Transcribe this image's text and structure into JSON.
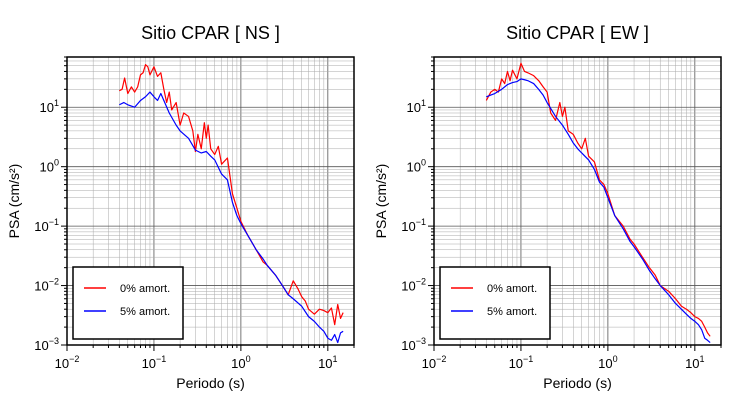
{
  "chart_data": [
    {
      "type": "line",
      "title": "Sitio CPAR [ NS ]",
      "xlabel": "Periodo (s)",
      "ylabel": "PSA (cm/s²)",
      "x_scale": "log",
      "y_scale": "log",
      "xlim": [
        0.01,
        20
      ],
      "ylim": [
        0.001,
        70
      ],
      "grid": true,
      "legend_position": "bottom-left",
      "x_ticks": [
        {
          "base": "10",
          "exp": "−2"
        },
        {
          "base": "10",
          "exp": "−1"
        },
        {
          "base": "10",
          "exp": "0"
        },
        {
          "base": "10",
          "exp": "1"
        }
      ],
      "y_ticks": [
        {
          "base": "10",
          "exp": "−3"
        },
        {
          "base": "10",
          "exp": "−2"
        },
        {
          "base": "10",
          "exp": "−1"
        },
        {
          "base": "10",
          "exp": "0"
        },
        {
          "base": "10",
          "exp": "1"
        }
      ],
      "series": [
        {
          "name": "0% amort.",
          "color": "#ff0000",
          "points": [
            [
              0.04,
              19
            ],
            [
              0.043,
              20
            ],
            [
              0.046,
              31
            ],
            [
              0.05,
              17
            ],
            [
              0.055,
              22
            ],
            [
              0.06,
              18
            ],
            [
              0.065,
              22
            ],
            [
              0.07,
              35
            ],
            [
              0.075,
              38
            ],
            [
              0.08,
              52
            ],
            [
              0.085,
              48
            ],
            [
              0.09,
              35
            ],
            [
              0.1,
              48
            ],
            [
              0.11,
              33
            ],
            [
              0.12,
              38
            ],
            [
              0.13,
              20
            ],
            [
              0.14,
              12
            ],
            [
              0.15,
              18
            ],
            [
              0.16,
              9
            ],
            [
              0.18,
              12
            ],
            [
              0.2,
              5
            ],
            [
              0.22,
              8
            ],
            [
              0.25,
              7
            ],
            [
              0.28,
              4
            ],
            [
              0.3,
              1.8
            ],
            [
              0.32,
              3.5
            ],
            [
              0.35,
              2
            ],
            [
              0.38,
              5.5
            ],
            [
              0.4,
              3
            ],
            [
              0.42,
              5
            ],
            [
              0.45,
              2
            ],
            [
              0.5,
              1.6
            ],
            [
              0.55,
              2.2
            ],
            [
              0.6,
              1.1
            ],
            [
              0.7,
              1.4
            ],
            [
              0.8,
              0.35
            ],
            [
              0.9,
              0.2
            ],
            [
              1.0,
              0.12
            ],
            [
              1.2,
              0.07
            ],
            [
              1.5,
              0.04
            ],
            [
              1.8,
              0.025
            ],
            [
              2.0,
              0.022
            ],
            [
              2.5,
              0.015
            ],
            [
              3.0,
              0.01
            ],
            [
              3.5,
              0.007
            ],
            [
              4.0,
              0.012
            ],
            [
              4.5,
              0.009
            ],
            [
              5.0,
              0.0065
            ],
            [
              5.5,
              0.0055
            ],
            [
              6.0,
              0.004
            ],
            [
              7.0,
              0.0033
            ],
            [
              8.0,
              0.004
            ],
            [
              9.0,
              0.0038
            ],
            [
              10.0,
              0.0035
            ],
            [
              11.0,
              0.0042
            ],
            [
              12.0,
              0.0022
            ],
            [
              13.0,
              0.0048
            ],
            [
              14.0,
              0.0028
            ],
            [
              15.0,
              0.0035
            ]
          ]
        },
        {
          "name": "5% amort.",
          "color": "#0000ff",
          "points": [
            [
              0.04,
              11
            ],
            [
              0.045,
              12
            ],
            [
              0.05,
              11
            ],
            [
              0.06,
              10
            ],
            [
              0.07,
              13
            ],
            [
              0.08,
              15
            ],
            [
              0.09,
              18
            ],
            [
              0.1,
              15
            ],
            [
              0.11,
              13
            ],
            [
              0.12,
              17
            ],
            [
              0.13,
              13
            ],
            [
              0.15,
              8
            ],
            [
              0.18,
              5
            ],
            [
              0.2,
              4
            ],
            [
              0.25,
              3
            ],
            [
              0.3,
              1.9
            ],
            [
              0.35,
              1.7
            ],
            [
              0.4,
              1.8
            ],
            [
              0.45,
              1.5
            ],
            [
              0.5,
              1.3
            ],
            [
              0.6,
              0.75
            ],
            [
              0.7,
              0.6
            ],
            [
              0.8,
              0.25
            ],
            [
              0.9,
              0.15
            ],
            [
              1.0,
              0.11
            ],
            [
              1.2,
              0.07
            ],
            [
              1.5,
              0.04
            ],
            [
              1.8,
              0.028
            ],
            [
              2.0,
              0.022
            ],
            [
              2.5,
              0.015
            ],
            [
              3.0,
              0.01
            ],
            [
              3.5,
              0.007
            ],
            [
              4.0,
              0.006
            ],
            [
              5.0,
              0.0045
            ],
            [
              6.0,
              0.003
            ],
            [
              7.0,
              0.0025
            ],
            [
              8.0,
              0.002
            ],
            [
              9.0,
              0.0017
            ],
            [
              10.0,
              0.0013
            ],
            [
              11.0,
              0.0012
            ],
            [
              12.0,
              0.0015
            ],
            [
              13.0,
              0.0011
            ],
            [
              14.0,
              0.0016
            ],
            [
              15.0,
              0.0017
            ]
          ]
        }
      ]
    },
    {
      "type": "line",
      "title": "Sitio CPAR [ EW ]",
      "xlabel": "Periodo (s)",
      "ylabel": "PSA (cm/s²)",
      "x_scale": "log",
      "y_scale": "log",
      "xlim": [
        0.01,
        20
      ],
      "ylim": [
        0.001,
        70
      ],
      "grid": true,
      "legend_position": "bottom-left",
      "x_ticks": [
        {
          "base": "10",
          "exp": "−2"
        },
        {
          "base": "10",
          "exp": "−1"
        },
        {
          "base": "10",
          "exp": "0"
        },
        {
          "base": "10",
          "exp": "1"
        }
      ],
      "y_ticks": [
        {
          "base": "10",
          "exp": "−3"
        },
        {
          "base": "10",
          "exp": "−2"
        },
        {
          "base": "10",
          "exp": "−1"
        },
        {
          "base": "10",
          "exp": "0"
        },
        {
          "base": "10",
          "exp": "1"
        }
      ],
      "series": [
        {
          "name": "0% amort.",
          "color": "#ff0000",
          "points": [
            [
              0.04,
              13
            ],
            [
              0.045,
              18
            ],
            [
              0.05,
              20
            ],
            [
              0.055,
              18
            ],
            [
              0.06,
              30
            ],
            [
              0.065,
              25
            ],
            [
              0.07,
              40
            ],
            [
              0.075,
              28
            ],
            [
              0.08,
              42
            ],
            [
              0.09,
              30
            ],
            [
              0.1,
              55
            ],
            [
              0.11,
              40
            ],
            [
              0.12,
              38
            ],
            [
              0.14,
              34
            ],
            [
              0.16,
              28
            ],
            [
              0.18,
              22
            ],
            [
              0.2,
              18
            ],
            [
              0.22,
              8
            ],
            [
              0.25,
              6
            ],
            [
              0.28,
              12
            ],
            [
              0.3,
              7
            ],
            [
              0.32,
              10
            ],
            [
              0.35,
              4
            ],
            [
              0.4,
              3.5
            ],
            [
              0.45,
              2.5
            ],
            [
              0.5,
              2
            ],
            [
              0.55,
              3
            ],
            [
              0.6,
              1.5
            ],
            [
              0.7,
              1.2
            ],
            [
              0.8,
              0.6
            ],
            [
              0.9,
              0.5
            ],
            [
              1.0,
              0.35
            ],
            [
              1.2,
              0.15
            ],
            [
              1.5,
              0.1
            ],
            [
              1.8,
              0.06
            ],
            [
              2.0,
              0.05
            ],
            [
              2.5,
              0.03
            ],
            [
              3.0,
              0.02
            ],
            [
              3.5,
              0.015
            ],
            [
              4.0,
              0.01
            ],
            [
              5.0,
              0.008
            ],
            [
              6.0,
              0.006
            ],
            [
              7.0,
              0.0045
            ],
            [
              8.0,
              0.004
            ],
            [
              9.0,
              0.0035
            ],
            [
              10.0,
              0.003
            ],
            [
              11.0,
              0.0028
            ],
            [
              12.0,
              0.0025
            ],
            [
              13.0,
              0.002
            ],
            [
              14.0,
              0.0016
            ],
            [
              15.0,
              0.0014
            ]
          ]
        },
        {
          "name": "5% amort.",
          "color": "#0000ff",
          "points": [
            [
              0.04,
              15
            ],
            [
              0.045,
              16
            ],
            [
              0.05,
              17
            ],
            [
              0.06,
              20
            ],
            [
              0.07,
              24
            ],
            [
              0.08,
              26
            ],
            [
              0.09,
              27
            ],
            [
              0.1,
              30
            ],
            [
              0.11,
              29
            ],
            [
              0.12,
              28
            ],
            [
              0.14,
              25
            ],
            [
              0.16,
              20
            ],
            [
              0.18,
              16
            ],
            [
              0.2,
              12
            ],
            [
              0.25,
              7
            ],
            [
              0.3,
              5
            ],
            [
              0.35,
              3.5
            ],
            [
              0.4,
              2.5
            ],
            [
              0.45,
              2
            ],
            [
              0.5,
              1.7
            ],
            [
              0.6,
              1.3
            ],
            [
              0.7,
              0.9
            ],
            [
              0.8,
              0.55
            ],
            [
              0.9,
              0.45
            ],
            [
              1.0,
              0.3
            ],
            [
              1.2,
              0.15
            ],
            [
              1.5,
              0.09
            ],
            [
              1.8,
              0.055
            ],
            [
              2.0,
              0.045
            ],
            [
              2.5,
              0.028
            ],
            [
              3.0,
              0.018
            ],
            [
              3.5,
              0.013
            ],
            [
              4.0,
              0.01
            ],
            [
              5.0,
              0.007
            ],
            [
              6.0,
              0.005
            ],
            [
              7.0,
              0.004
            ],
            [
              8.0,
              0.0033
            ],
            [
              9.0,
              0.0028
            ],
            [
              10.0,
              0.0025
            ],
            [
              11.0,
              0.0022
            ],
            [
              12.0,
              0.0018
            ],
            [
              13.0,
              0.0013
            ],
            [
              14.0,
              0.0012
            ],
            [
              15.0,
              0.0011
            ]
          ]
        }
      ]
    }
  ]
}
